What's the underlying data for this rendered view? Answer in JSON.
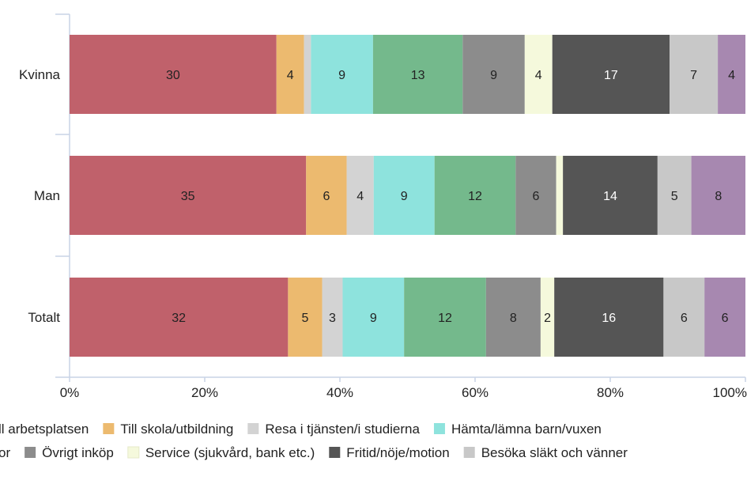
{
  "chart_data": {
    "type": "bar",
    "orientation": "horizontal",
    "stacked": "percent",
    "categories": [
      "Kvinna",
      "Man",
      "Totalt"
    ],
    "xlim": [
      0,
      100
    ],
    "xticks": [
      "0%",
      "20%",
      "40%",
      "60%",
      "80%",
      "100%"
    ],
    "grid": false,
    "legend_position": "bottom",
    "series": [
      {
        "name": "Till arbetsplatsen",
        "color": "#c0616b",
        "values": [
          30,
          35,
          32
        ],
        "labels": [
          "30",
          "35",
          "32"
        ]
      },
      {
        "name": "Till skola/utbildning",
        "color": "#ecba6f",
        "values": [
          4,
          6,
          5
        ],
        "labels": [
          "4",
          "6",
          "5"
        ]
      },
      {
        "name": "Resa i tjänsten/i studierna",
        "color": "#d3d3d3",
        "values": [
          1,
          4,
          3
        ],
        "labels": [
          "",
          "4",
          "3"
        ]
      },
      {
        "name": "Hämta/lämna barn/vuxen",
        "color": "#8ee3dd",
        "values": [
          9,
          9,
          9
        ],
        "labels": [
          "9",
          "9",
          "9"
        ]
      },
      {
        "name": "",
        "color": "#74b98c",
        "values": [
          13,
          12,
          12
        ],
        "labels": [
          "13",
          "12",
          "12"
        ]
      },
      {
        "name": "Övrigt inköp",
        "color": "#8c8c8c",
        "values": [
          9,
          6,
          8
        ],
        "labels": [
          "9",
          "6",
          "8"
        ]
      },
      {
        "name": "Service (sjukvård, bank etc.)",
        "color": "#f5f9dc",
        "values": [
          4,
          1,
          2
        ],
        "labels": [
          "4",
          "",
          "2"
        ]
      },
      {
        "name": "Fritid/nöje/motion",
        "color": "#555555",
        "values": [
          17,
          14,
          16
        ],
        "labels": [
          "17",
          "14",
          "16"
        ]
      },
      {
        "name": "Besöka släkt och vänner",
        "color": "#c8c8c8",
        "values": [
          7,
          5,
          6
        ],
        "labels": [
          "7",
          "5",
          "6"
        ]
      },
      {
        "name": "",
        "color": "#a788b0",
        "values": [
          4,
          8,
          6
        ],
        "labels": [
          "4",
          "8",
          "6"
        ]
      }
    ]
  },
  "legend_rows": [
    [
      {
        "text": "ll arbetsplatsen",
        "color": "#c0616b",
        "swatch": false
      },
      {
        "text": "Till skola/utbildning",
        "color": "#ecba6f",
        "swatch": true
      },
      {
        "text": "Resa i tjänsten/i studierna",
        "color": "#d3d3d3",
        "swatch": true
      },
      {
        "text": "Hämta/lämna barn/vuxen",
        "color": "#8ee3dd",
        "swatch": true
      }
    ],
    [
      {
        "text": "or",
        "color": "#74b98c",
        "swatch": false
      },
      {
        "text": "Övrigt inköp",
        "color": "#8c8c8c",
        "swatch": true
      },
      {
        "text": "Service (sjukvård, bank etc.)",
        "color": "#f5f9dc",
        "swatch": true
      },
      {
        "text": "Fritid/nöje/motion",
        "color": "#555555",
        "swatch": true
      },
      {
        "text": "Besöka släkt och vänner",
        "color": "#c8c8c8",
        "swatch": true
      }
    ]
  ]
}
